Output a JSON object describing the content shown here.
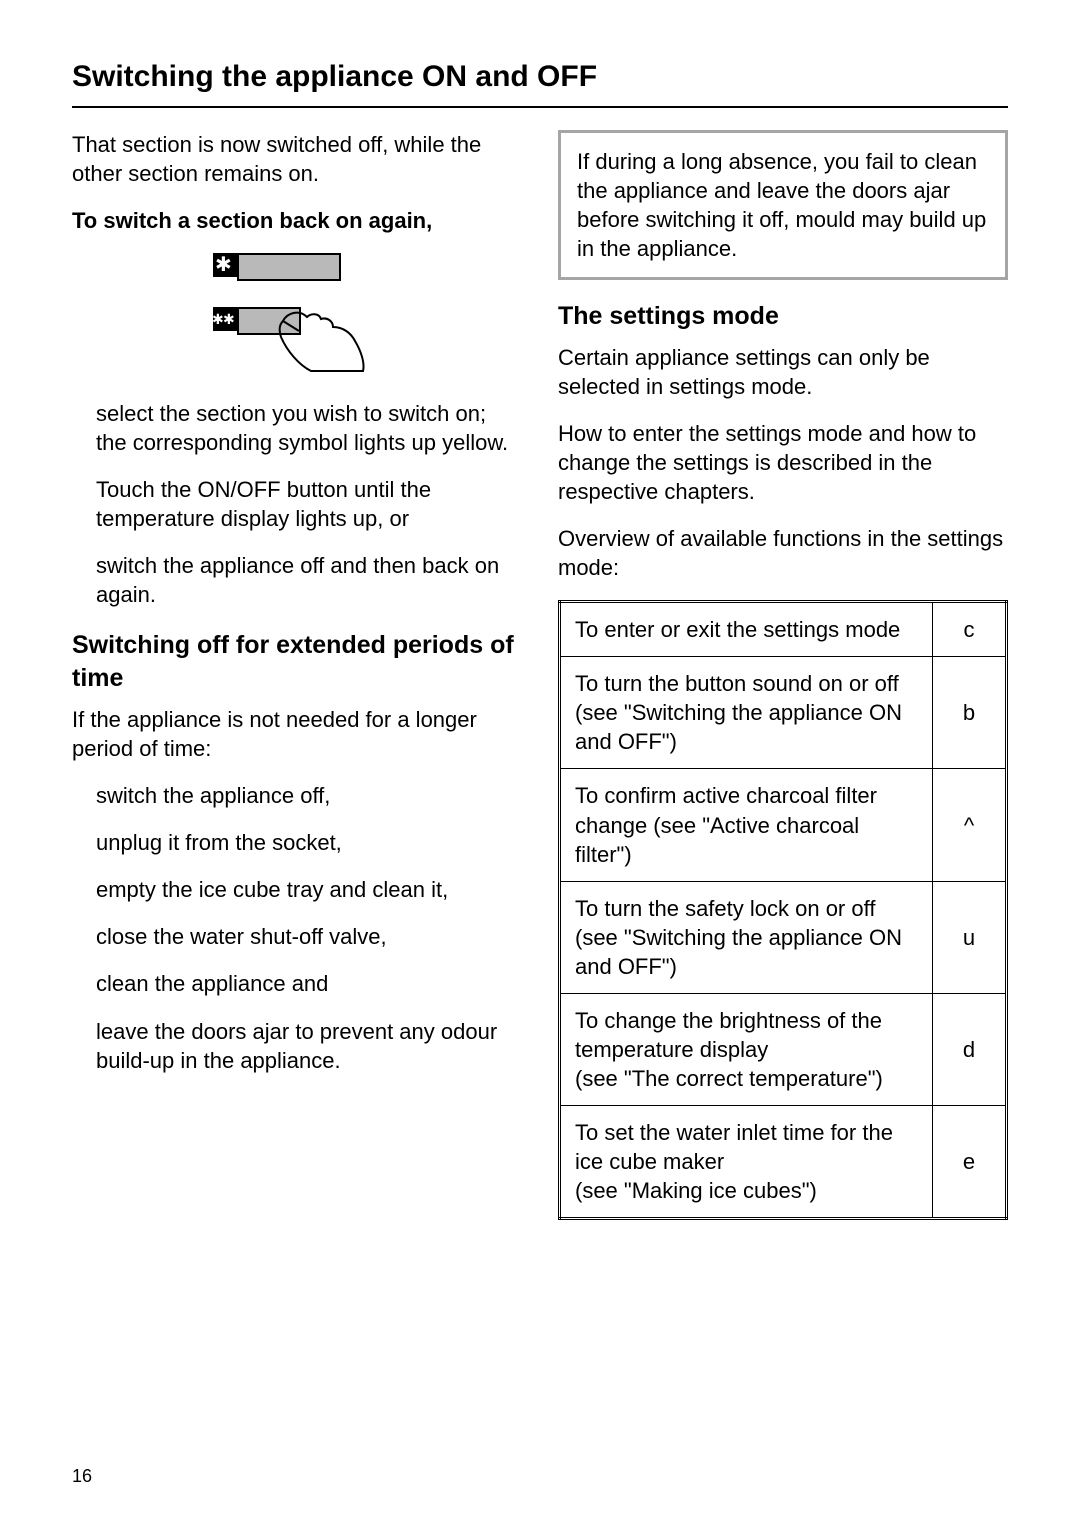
{
  "page_title": "Switching the appliance ON and OFF",
  "page_number": "16",
  "left_col": {
    "intro": "That section is now switched off, while the other section remains on.",
    "switch_back_heading": "To switch a section back on again,",
    "steps": {
      "select": "select the section you wish to switch on; the corresponding symbol lights up yellow.",
      "touch": "Touch the ON/OFF button until the temperature display lights up, or",
      "switch_off_on": "switch the appliance off and then back on again."
    },
    "extended_heading": "Switching off for extended periods of time",
    "extended_intro": "If the appliance is not needed for a longer period of time:",
    "extended_steps": {
      "s1": "switch the appliance off,",
      "s2": "unplug it from the socket,",
      "s3": "empty the ice cube tray and clean it,",
      "s4": "close the water shut-off valve,",
      "s5": "clean the appliance and",
      "s6": "leave the doors ajar to prevent any odour build-up in the appliance."
    }
  },
  "right_col": {
    "warning_box": "If during a long absence, you fail to clean the appliance and leave the doors ajar before switching it off, mould may build up in the appliance.",
    "settings_heading": "The settings mode",
    "settings_p1": "Certain appliance settings can only be selected in settings mode.",
    "settings_p2": "How to enter the settings mode and how to change the settings is described in the respective chapters.",
    "settings_p3": "Overview of available functions in the settings mode:",
    "table": {
      "rows": [
        {
          "desc": "To enter or exit the settings mode",
          "sym": "c"
        },
        {
          "desc": "To turn the button sound on or off\n(see \"Switching the appliance ON and OFF\")",
          "sym": "b"
        },
        {
          "desc": "To confirm active charcoal filter change (see \"Active charcoal filter\")",
          "sym": "^"
        },
        {
          "desc": "To turn the safety lock on or off (see \"Switching the appliance ON and OFF\")",
          "sym": "u"
        },
        {
          "desc": "To change the brightness of the temperature display\n(see \"The correct temperature\")",
          "sym": "d"
        },
        {
          "desc": "To set the water inlet time for the ice cube maker\n(see \"Making ice cubes\")",
          "sym": "e"
        }
      ]
    }
  }
}
